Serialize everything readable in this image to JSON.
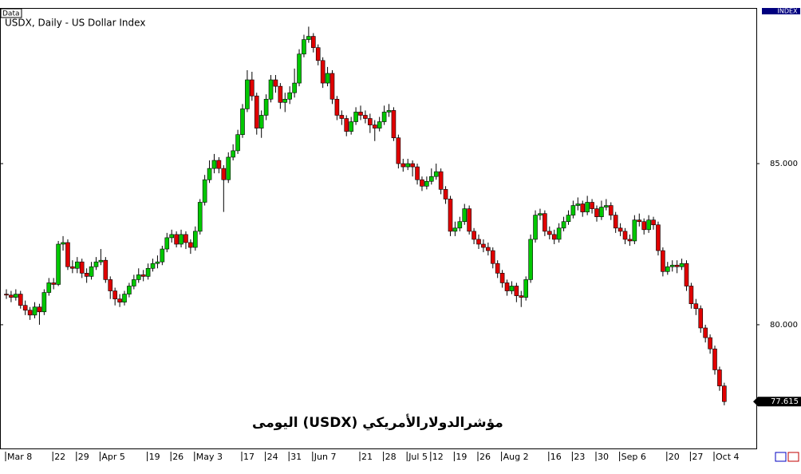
{
  "chart_data": {
    "type": "candlestick",
    "panel_label": "Data",
    "title": "USDX, Daily - US Dollar Index",
    "scale_label": "INDEX",
    "annotation": "مؤشرالدولارالأمريكي (USDX) اليومى",
    "last_price": 77.615,
    "up_color": "#00c800",
    "down_color": "#e00000",
    "ylim": [
      76.16,
      89.83
    ],
    "yticks": [
      {
        "value": 80,
        "label": "80.000"
      },
      {
        "value": 85,
        "label": "85.000"
      }
    ],
    "categories": [
      "Mar 8",
      null,
      null,
      null,
      null,
      null,
      null,
      null,
      null,
      null,
      "22",
      null,
      null,
      null,
      null,
      "29",
      null,
      null,
      null,
      null,
      "Apr 5",
      null,
      null,
      null,
      null,
      null,
      null,
      null,
      null,
      null,
      "19",
      null,
      null,
      null,
      null,
      "26",
      null,
      null,
      null,
      null,
      "May 3",
      null,
      null,
      null,
      null,
      null,
      null,
      null,
      null,
      null,
      "17",
      null,
      null,
      null,
      null,
      "24",
      null,
      null,
      null,
      null,
      "31",
      null,
      null,
      null,
      null,
      "Jun 7",
      null,
      null,
      null,
      null,
      null,
      null,
      null,
      null,
      null,
      "21",
      null,
      null,
      null,
      null,
      "28",
      null,
      null,
      null,
      null,
      "Jul 5",
      null,
      null,
      null,
      null,
      "12",
      null,
      null,
      null,
      null,
      "19",
      null,
      null,
      null,
      null,
      "26",
      null,
      null,
      null,
      null,
      "Aug 2",
      null,
      null,
      null,
      null,
      null,
      null,
      null,
      null,
      null,
      "16",
      null,
      null,
      null,
      null,
      "23",
      null,
      null,
      null,
      null,
      "30",
      null,
      null,
      null,
      null,
      "Sep 6",
      null,
      null,
      null,
      null,
      null,
      null,
      null,
      null,
      null,
      "20",
      null,
      null,
      null,
      null,
      "27",
      null,
      null,
      null,
      null,
      "Oct 4",
      null,
      null
    ],
    "open": [
      80.95,
      80.92,
      80.85,
      80.95,
      80.6,
      80.45,
      80.3,
      80.55,
      80.4,
      81.0,
      81.3,
      81.25,
      82.5,
      82.55,
      81.8,
      81.75,
      81.95,
      81.6,
      81.5,
      81.8,
      81.95,
      82.0,
      81.4,
      81.05,
      80.8,
      80.7,
      80.95,
      81.2,
      81.4,
      81.55,
      81.5,
      81.75,
      81.9,
      81.95,
      82.35,
      82.7,
      82.8,
      82.5,
      82.8,
      82.55,
      82.4,
      82.9,
      83.8,
      84.5,
      84.85,
      85.1,
      84.85,
      84.5,
      85.2,
      85.4,
      85.9,
      86.7,
      87.6,
      87.1,
      86.1,
      86.5,
      87.0,
      87.6,
      87.4,
      86.9,
      87.0,
      87.2,
      87.5,
      88.4,
      88.85,
      88.95,
      88.6,
      88.2,
      87.5,
      87.8,
      87.0,
      86.5,
      86.4,
      86.0,
      86.3,
      86.6,
      86.5,
      86.4,
      86.2,
      86.1,
      86.3,
      86.6,
      86.65,
      85.8,
      85.0,
      84.9,
      85.0,
      84.9,
      84.5,
      84.3,
      84.45,
      84.6,
      84.75,
      84.2,
      83.9,
      82.9,
      83.0,
      83.2,
      83.6,
      82.9,
      82.65,
      82.5,
      82.4,
      82.3,
      81.9,
      81.6,
      81.3,
      81.05,
      81.2,
      80.9,
      80.85,
      81.4,
      82.65,
      83.4,
      83.45,
      82.9,
      82.8,
      82.65,
      83.0,
      83.2,
      83.4,
      83.7,
      83.75,
      83.5,
      83.8,
      83.6,
      83.35,
      83.65,
      83.7,
      83.4,
      83.0,
      82.9,
      82.65,
      82.6,
      83.25,
      83.2,
      82.95,
      83.25,
      83.1,
      82.3,
      81.65,
      81.8,
      81.85,
      81.8,
      81.9,
      81.2,
      80.65,
      80.5,
      79.9,
      79.6,
      79.25,
      78.6,
      78.1
    ],
    "high": [
      81.1,
      81.05,
      81.1,
      81.05,
      80.75,
      80.55,
      80.7,
      80.65,
      81.1,
      81.45,
      81.45,
      82.6,
      82.75,
      82.65,
      82.0,
      82.1,
      82.05,
      81.75,
      81.95,
      82.1,
      82.35,
      82.1,
      81.5,
      81.15,
      80.95,
      81.05,
      81.3,
      81.55,
      81.75,
      81.7,
      81.9,
      82.05,
      82.15,
      82.45,
      82.85,
      82.95,
      82.9,
      82.95,
      82.9,
      82.65,
      83.05,
      83.9,
      84.65,
      85.1,
      85.3,
      85.2,
      84.95,
      85.35,
      85.6,
      86.05,
      86.85,
      87.9,
      87.85,
      87.2,
      86.65,
      87.15,
      87.75,
      87.75,
      87.5,
      87.2,
      87.4,
      87.95,
      88.55,
      89.0,
      89.25,
      89.05,
      88.7,
      88.3,
      88.0,
      87.9,
      87.1,
      86.65,
      86.5,
      86.45,
      86.75,
      86.8,
      86.65,
      86.55,
      86.35,
      86.45,
      86.8,
      86.85,
      86.75,
      85.9,
      85.15,
      85.15,
      85.1,
      85.0,
      84.6,
      84.6,
      84.85,
      85.0,
      84.85,
      84.3,
      84.0,
      83.2,
      83.35,
      83.75,
      83.7,
      83.0,
      82.8,
      82.65,
      82.55,
      82.4,
      82.0,
      81.7,
      81.4,
      81.35,
      81.3,
      81.05,
      81.5,
      82.8,
      83.55,
      83.6,
      83.55,
      83.05,
      82.95,
      83.15,
      83.35,
      83.55,
      83.85,
      83.95,
      83.85,
      84.0,
      83.9,
      83.7,
      83.85,
      83.9,
      83.8,
      83.5,
      83.15,
      83.0,
      82.8,
      83.4,
      83.45,
      83.3,
      83.4,
      83.35,
      83.2,
      82.4,
      81.95,
      82.0,
      82.0,
      82.05,
      82.0,
      81.3,
      80.8,
      80.6,
      80.0,
      79.7,
      79.35,
      78.7,
      78.2
    ],
    "low": [
      80.8,
      80.7,
      80.75,
      80.5,
      80.3,
      80.15,
      80.2,
      80.0,
      80.3,
      80.9,
      81.1,
      81.2,
      82.3,
      81.7,
      81.6,
      81.6,
      81.45,
      81.3,
      81.4,
      81.7,
      81.85,
      81.3,
      80.8,
      80.6,
      80.55,
      80.6,
      80.85,
      81.1,
      81.3,
      81.35,
      81.4,
      81.65,
      81.75,
      81.85,
      82.25,
      82.55,
      82.4,
      82.4,
      82.35,
      82.2,
      82.3,
      82.8,
      83.7,
      84.4,
      84.7,
      84.7,
      83.5,
      84.4,
      85.1,
      85.3,
      85.8,
      86.6,
      86.95,
      85.9,
      85.8,
      86.35,
      86.9,
      87.2,
      86.7,
      86.6,
      86.85,
      87.05,
      87.4,
      88.3,
      88.75,
      88.45,
      88.05,
      87.35,
      87.4,
      86.85,
      86.35,
      86.2,
      85.85,
      85.9,
      86.2,
      86.35,
      86.25,
      85.95,
      85.7,
      86.0,
      86.2,
      86.45,
      85.7,
      84.85,
      84.75,
      84.8,
      84.6,
      84.35,
      84.15,
      84.2,
      84.35,
      84.5,
      84.05,
      83.75,
      82.75,
      82.75,
      82.9,
      83.1,
      82.8,
      82.5,
      82.35,
      82.25,
      82.15,
      81.75,
      81.45,
      81.15,
      80.9,
      80.95,
      80.7,
      80.55,
      80.75,
      81.3,
      82.55,
      83.25,
      82.75,
      82.65,
      82.5,
      82.55,
      82.9,
      83.1,
      83.3,
      83.55,
      83.35,
      83.4,
      83.45,
      83.2,
      83.25,
      83.55,
      83.25,
      82.85,
      82.75,
      82.5,
      82.45,
      82.5,
      83.05,
      82.8,
      82.85,
      82.95,
      82.15,
      81.5,
      81.55,
      81.65,
      81.6,
      81.7,
      81.05,
      80.5,
      80.3,
      79.75,
      79.45,
      79.1,
      78.45,
      77.95,
      77.5
    ],
    "close": [
      80.92,
      80.85,
      80.95,
      80.6,
      80.45,
      80.3,
      80.55,
      80.4,
      81.0,
      81.3,
      81.25,
      82.5,
      82.55,
      81.8,
      81.75,
      81.95,
      81.6,
      81.5,
      81.8,
      81.95,
      82.0,
      81.4,
      81.05,
      80.8,
      80.7,
      80.95,
      81.2,
      81.4,
      81.55,
      81.5,
      81.75,
      81.9,
      81.95,
      82.35,
      82.7,
      82.8,
      82.5,
      82.8,
      82.55,
      82.4,
      82.9,
      83.8,
      84.5,
      84.85,
      85.1,
      84.85,
      84.5,
      85.2,
      85.4,
      85.9,
      86.7,
      87.6,
      87.1,
      86.1,
      86.5,
      87.0,
      87.6,
      87.4,
      86.9,
      87.0,
      87.2,
      87.5,
      88.4,
      88.85,
      88.95,
      88.6,
      88.2,
      87.5,
      87.8,
      87.0,
      86.5,
      86.4,
      86.0,
      86.3,
      86.6,
      86.5,
      86.4,
      86.2,
      86.1,
      86.3,
      86.6,
      86.65,
      85.8,
      85.0,
      84.9,
      85.0,
      84.9,
      84.5,
      84.3,
      84.45,
      84.6,
      84.75,
      84.2,
      83.9,
      82.9,
      83.0,
      83.2,
      83.6,
      82.9,
      82.65,
      82.5,
      82.4,
      82.3,
      81.9,
      81.6,
      81.3,
      81.05,
      81.2,
      80.9,
      80.85,
      81.4,
      82.65,
      83.4,
      83.45,
      82.9,
      82.8,
      82.65,
      83.0,
      83.2,
      83.4,
      83.7,
      83.75,
      83.5,
      83.8,
      83.6,
      83.35,
      83.65,
      83.7,
      83.4,
      83.0,
      82.9,
      82.65,
      82.6,
      83.25,
      83.2,
      82.95,
      83.25,
      83.1,
      82.3,
      81.65,
      81.8,
      81.85,
      81.8,
      81.9,
      81.2,
      80.65,
      80.5,
      79.9,
      79.6,
      79.25,
      78.6,
      78.1,
      77.615
    ]
  }
}
